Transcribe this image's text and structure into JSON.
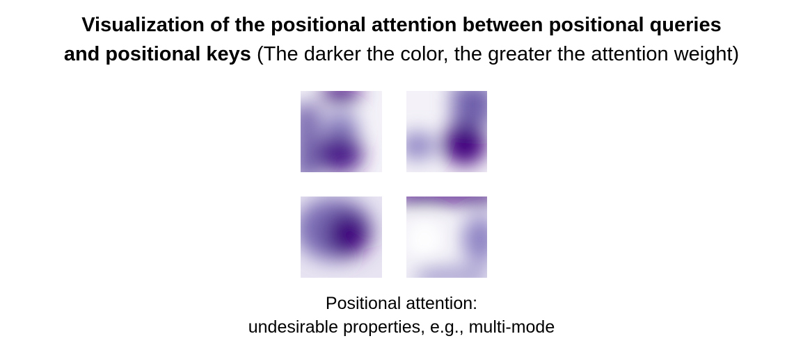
{
  "header": {
    "title_lines": [
      "Visualization of the positional attention between positional queries",
      "and positional keys"
    ],
    "note": "(The darker the color, the greater the attention weight)"
  },
  "caption": {
    "lines": [
      "Positional attention:",
      "undesirable properties, e.g., multi-mode"
    ]
  }
}
